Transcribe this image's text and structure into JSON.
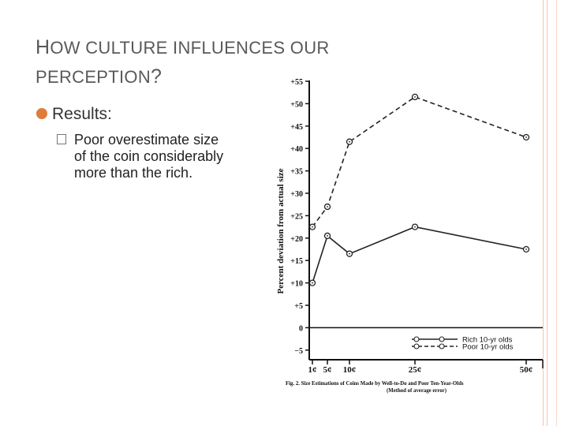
{
  "slide": {
    "title_first_letter": "H",
    "title_rest": "OW CULTURE INFLUENCES OUR",
    "title_line2": "PERCEPTION",
    "title_q": "?",
    "bullet_main": "Results:",
    "bullet_sub": [
      "Poor overestimate size",
      "of the coin considerably",
      "more than the rich."
    ],
    "colors": {
      "accent": "#e07b39",
      "border": "#f4c4b0",
      "text": "#595959"
    }
  },
  "chart_data": {
    "type": "line",
    "ylabel": "Percent deviation from actual size",
    "y_ticks": [
      "+55",
      "+50",
      "+45",
      "+40",
      "+35",
      "+30",
      "+25",
      "+20",
      "+15",
      "+10",
      "+5",
      "0",
      "−5"
    ],
    "ylim": [
      -8,
      55
    ],
    "x_ticks": [
      "1¢",
      "5¢",
      "10¢",
      "25¢",
      "50¢"
    ],
    "series": [
      {
        "name": "Rich 10-yr olds",
        "style": "solid",
        "values": [
          10,
          20.5,
          16.5,
          22.5,
          17.5
        ]
      },
      {
        "name": "Poor 10-yr olds",
        "style": "dashed",
        "values": [
          22.5,
          27,
          41.5,
          51.5,
          42.5
        ]
      }
    ],
    "caption_main": "Fig. 2. Size Estimations of Coins Made by Well-to-Do and Poor Ten-Year-Olds",
    "caption_sub": "(Method of average error)"
  }
}
